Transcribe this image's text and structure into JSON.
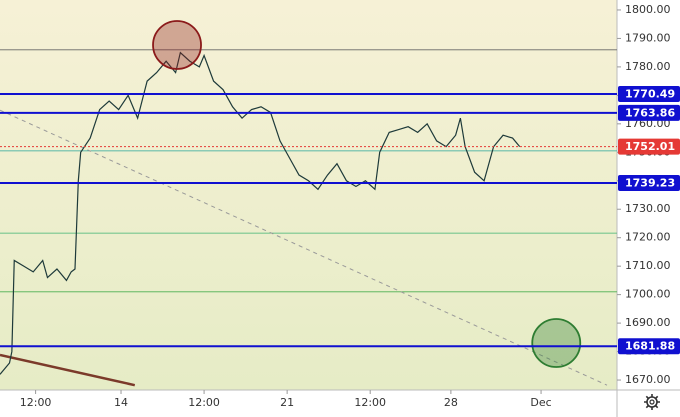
{
  "chart_data": {
    "type": "line",
    "x": [
      0,
      2,
      2.5,
      3,
      5,
      7,
      9,
      10,
      12,
      14,
      15,
      15.8,
      16.5,
      17,
      19,
      21,
      23,
      25,
      27,
      29,
      31,
      33,
      35,
      37,
      38,
      40,
      42,
      43,
      45,
      47,
      49,
      51,
      53,
      55,
      57,
      59,
      61,
      63,
      65,
      67,
      69,
      71,
      73,
      75,
      77,
      79,
      80,
      82,
      84,
      86,
      88,
      90,
      92,
      94,
      96,
      97,
      98,
      100,
      102,
      104,
      106,
      108,
      109.5
    ],
    "series": [
      {
        "color": "#1e3a3a",
        "values": [
          1672,
          1676,
          1680,
          1712,
          1710,
          1708,
          1712,
          1706,
          1709,
          1705,
          1708,
          1709,
          1740,
          1750,
          1755,
          1765,
          1768,
          1765,
          1770,
          1762,
          1775,
          1778,
          1782,
          1778,
          1785,
          1782,
          1780,
          1784,
          1775,
          1772,
          1766,
          1762,
          1765,
          1766,
          1764,
          1754,
          1748,
          1742,
          1740,
          1737,
          1742,
          1746,
          1740,
          1738,
          1740,
          1737,
          1750,
          1757,
          1758,
          1759,
          1757,
          1760,
          1754,
          1752,
          1756,
          1762,
          1752,
          1743,
          1740,
          1752,
          1756,
          1755,
          1752
        ]
      }
    ],
    "xlim": [
      0,
      130
    ],
    "xticks": [
      {
        "value": 7.5,
        "label": "12:00"
      },
      {
        "value": 25.5,
        "label": "14"
      },
      {
        "value": 43,
        "label": "12:00"
      },
      {
        "value": 60.5,
        "label": "21"
      },
      {
        "value": 78,
        "label": "12:00"
      },
      {
        "value": 95,
        "label": "28"
      },
      {
        "value": 114,
        "label": "Dec"
      }
    ],
    "ylim": [
      1666.5,
      1803.5
    ],
    "yticks": [
      {
        "value": 1800,
        "label": "1800.00"
      },
      {
        "value": 1790,
        "label": "1790.00"
      },
      {
        "value": 1780,
        "label": "1780.00"
      },
      {
        "value": 1770,
        "label": "1770.00"
      },
      {
        "value": 1760,
        "label": "1760.00"
      },
      {
        "value": 1750,
        "label": "1750.00"
      },
      {
        "value": 1740,
        "label": "1740.00"
      },
      {
        "value": 1730,
        "label": "1730.00"
      },
      {
        "value": 1720,
        "label": "1720.00"
      },
      {
        "value": 1710,
        "label": "1710.00"
      },
      {
        "value": 1700,
        "label": "1700.00"
      },
      {
        "value": 1690,
        "label": "1690.00"
      },
      {
        "value": 1680,
        "label": "1680.00"
      },
      {
        "value": 1670,
        "label": "1670.00"
      }
    ],
    "levels": [
      {
        "value": 1770.49,
        "color": "#1010d0"
      },
      {
        "value": 1763.86,
        "color": "#1010d0"
      },
      {
        "value": 1752.01,
        "color": "#e53935"
      },
      {
        "value": 1739.23,
        "color": "#1010d0"
      },
      {
        "value": 1681.88,
        "color": "#1010d0"
      }
    ],
    "guides": [
      {
        "value": 1786,
        "color": "#666"
      },
      {
        "value": 1750.5,
        "color": "#26a69a"
      },
      {
        "value": 1721.6,
        "color": "#3cb371"
      },
      {
        "value": 1701,
        "color": "#4caf50"
      }
    ],
    "trendlines": [
      {
        "x": [
          0,
          127.9
        ],
        "y": [
          1764.8,
          1668.2
        ],
        "color": "#999",
        "dash": true
      },
      {
        "x": [
          0,
          28.4
        ],
        "y": [
          1678.8,
          1668.2
        ],
        "color": "#7b3a2a",
        "dash": false
      }
    ],
    "circles": [
      {
        "x": 37.3,
        "y": 1787.7,
        "color": "#8b1a1a"
      },
      {
        "x": 117.2,
        "y": 1683.0,
        "color": "#2e7d32"
      }
    ]
  }
}
